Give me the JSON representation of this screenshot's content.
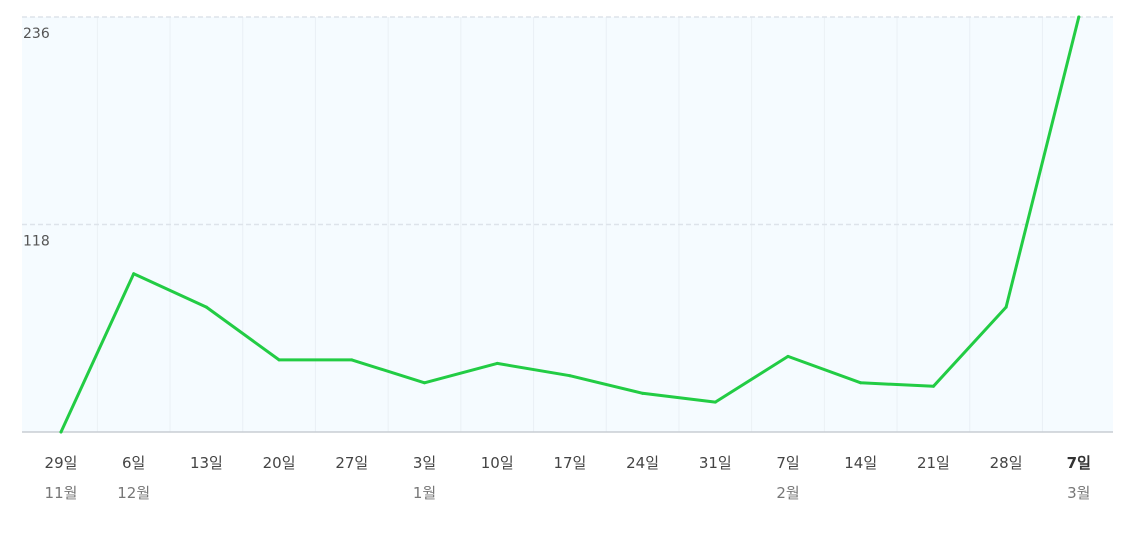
{
  "chart_data": {
    "type": "area",
    "title": "",
    "xlabel": "",
    "ylabel": "",
    "y_ticks": [
      {
        "label": "118",
        "value": 118
      },
      {
        "label": "236",
        "value": 236
      }
    ],
    "ylim": [
      0,
      236
    ],
    "categories": [
      {
        "day": "29일",
        "month": "11월",
        "current": false
      },
      {
        "day": "6일",
        "month": "12월",
        "current": false
      },
      {
        "day": "13일",
        "month": "",
        "current": false
      },
      {
        "day": "20일",
        "month": "",
        "current": false
      },
      {
        "day": "27일",
        "month": "",
        "current": false
      },
      {
        "day": "3일",
        "month": "1월",
        "current": false
      },
      {
        "day": "10일",
        "month": "",
        "current": false
      },
      {
        "day": "17일",
        "month": "",
        "current": false
      },
      {
        "day": "24일",
        "month": "",
        "current": false
      },
      {
        "day": "31일",
        "month": "",
        "current": false
      },
      {
        "day": "7일",
        "month": "2월",
        "current": false
      },
      {
        "day": "14일",
        "month": "",
        "current": false
      },
      {
        "day": "21일",
        "month": "",
        "current": false
      },
      {
        "day": "28일",
        "month": "",
        "current": false
      },
      {
        "day": "7일",
        "month": "3월",
        "current": true
      }
    ],
    "series": [
      {
        "values": [
          0,
          90,
          71,
          41,
          41,
          28,
          39,
          32,
          22,
          17,
          43,
          28,
          26,
          71,
          236
        ]
      }
    ],
    "grid": true,
    "colors": {
      "line": "#22cc44",
      "plot_background": "#f5fbff",
      "gridline": "#dde3ea",
      "axis": "#c8cdd3"
    }
  }
}
